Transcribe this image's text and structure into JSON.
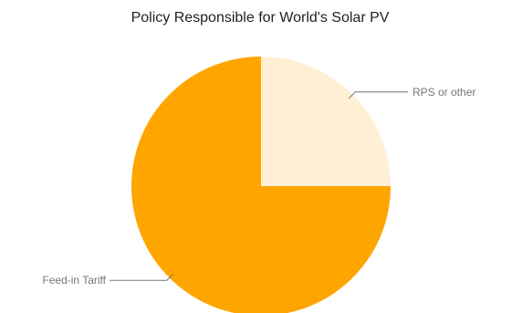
{
  "chart_data": {
    "type": "pie",
    "title": "Policy Responsible for World's Solar PV",
    "slices": [
      {
        "label": "RPS or other",
        "value": 25,
        "color": "#ffefd5"
      },
      {
        "label": "Feed-in Tariff",
        "value": 75,
        "color": "#ffa500"
      }
    ],
    "start_angle_deg": 0,
    "direction": "clockwise",
    "legend": "labeled"
  }
}
